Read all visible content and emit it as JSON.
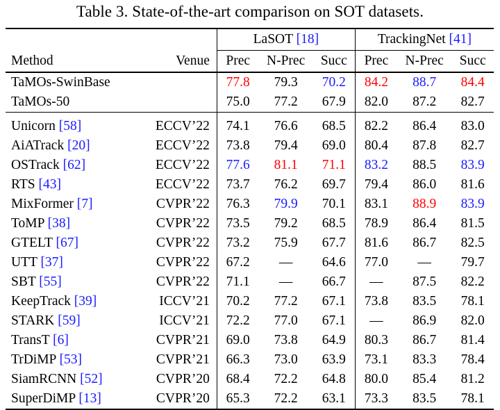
{
  "caption": "Table 3. State-of-the-art comparison on SOT datasets.",
  "groups": [
    {
      "name": "LaSOT",
      "ref": "[18]"
    },
    {
      "name": "TrackingNet",
      "ref": "[41]"
    }
  ],
  "headers": {
    "method": "Method",
    "venue": "Venue",
    "metrics": [
      "Prec",
      "N-Prec",
      "Succ",
      "Prec",
      "N-Prec",
      "Succ"
    ]
  },
  "colors": {
    "best": "#ff0000",
    "second": "#1a1aff",
    "cite": "#1a1aff"
  },
  "ours": [
    {
      "name": "TaMOs-SwinBase",
      "values": [
        "77.8",
        "79.3",
        "70.2",
        "84.2",
        "88.7",
        "84.4"
      ],
      "hl": [
        "red",
        "",
        "blue",
        "red",
        "blue",
        "red"
      ]
    },
    {
      "name": "TaMOs-50",
      "values": [
        "75.0",
        "77.2",
        "67.9",
        "82.0",
        "87.2",
        "82.7"
      ],
      "hl": [
        "",
        "",
        "",
        "",
        "",
        ""
      ]
    }
  ],
  "rows": [
    {
      "name": "Unicorn",
      "ref": "[58]",
      "venue": "ECCV’22",
      "values": [
        "74.1",
        "76.6",
        "68.5",
        "82.2",
        "86.4",
        "83.0"
      ],
      "hl": [
        "",
        "",
        "",
        "",
        "",
        ""
      ]
    },
    {
      "name": "AiATrack",
      "ref": "[20]",
      "venue": "ECCV’22",
      "values": [
        "73.8",
        "79.4",
        "69.0",
        "80.4",
        "87.8",
        "82.7"
      ],
      "hl": [
        "",
        "",
        "",
        "",
        "",
        ""
      ]
    },
    {
      "name": "OSTrack",
      "ref": "[62]",
      "venue": "ECCV’22",
      "values": [
        "77.6",
        "81.1",
        "71.1",
        "83.2",
        "88.5",
        "83.9"
      ],
      "hl": [
        "blue",
        "red",
        "red",
        "blue",
        "",
        "blue"
      ]
    },
    {
      "name": "RTS",
      "ref": "[43]",
      "venue": "ECCV’22",
      "values": [
        "73.7",
        "76.2",
        "69.7",
        "79.4",
        "86.0",
        "81.6"
      ],
      "hl": [
        "",
        "",
        "",
        "",
        "",
        ""
      ]
    },
    {
      "name": "MixFormer",
      "ref": "[7]",
      "venue": "CVPR’22",
      "values": [
        "76.3",
        "79.9",
        "70.1",
        "83.1",
        "88.9",
        "83.9"
      ],
      "hl": [
        "",
        "blue",
        "",
        "",
        "red",
        "blue"
      ]
    },
    {
      "name": "ToMP",
      "ref": "[38]",
      "venue": "CVPR’22",
      "values": [
        "73.5",
        "79.2",
        "68.5",
        "78.9",
        "86.4",
        "81.5"
      ],
      "hl": [
        "",
        "",
        "",
        "",
        "",
        ""
      ]
    },
    {
      "name": "GTELT",
      "ref": "[67]",
      "venue": "CVPR’22",
      "values": [
        "73.2",
        "75.9",
        "67.7",
        "81.6",
        "86.7",
        "82.5"
      ],
      "hl": [
        "",
        "",
        "",
        "",
        "",
        ""
      ]
    },
    {
      "name": "UTT",
      "ref": "[37]",
      "venue": "CVPR’22",
      "values": [
        "67.2",
        "—",
        "64.6",
        "77.0",
        "—",
        "79.7"
      ],
      "hl": [
        "",
        "",
        "",
        "",
        "",
        ""
      ]
    },
    {
      "name": "SBT",
      "ref": "[55]",
      "venue": "CVPR’22",
      "values": [
        "71.1",
        "—",
        "66.7",
        "—",
        "87.5",
        "82.2"
      ],
      "hl": [
        "",
        "",
        "",
        "",
        "",
        ""
      ]
    },
    {
      "name": "KeepTrack",
      "ref": "[39]",
      "venue": "ICCV’21",
      "values": [
        "70.2",
        "77.2",
        "67.1",
        "73.8",
        "83.5",
        "78.1"
      ],
      "hl": [
        "",
        "",
        "",
        "",
        "",
        ""
      ]
    },
    {
      "name": "STARK",
      "ref": "[59]",
      "venue": "ICCV’21",
      "values": [
        "72.2",
        "77.0",
        "67.1",
        "—",
        "86.9",
        "82.0"
      ],
      "hl": [
        "",
        "",
        "",
        "",
        "",
        ""
      ]
    },
    {
      "name": "TransT",
      "ref": "[6]",
      "venue": "CVPR’21",
      "values": [
        "69.0",
        "73.8",
        "64.9",
        "80.3",
        "86.7",
        "81.4"
      ],
      "hl": [
        "",
        "",
        "",
        "",
        "",
        ""
      ]
    },
    {
      "name": "TrDiMP",
      "ref": "[53]",
      "venue": "CVPR’21",
      "values": [
        "66.3",
        "73.0",
        "63.9",
        "73.1",
        "83.3",
        "78.4"
      ],
      "hl": [
        "",
        "",
        "",
        "",
        "",
        ""
      ]
    },
    {
      "name": "SiamRCNN",
      "ref": "[52]",
      "venue": "CVPR’20",
      "values": [
        "68.4",
        "72.2",
        "64.8",
        "80.0",
        "85.4",
        "81.2"
      ],
      "hl": [
        "",
        "",
        "",
        "",
        "",
        ""
      ]
    },
    {
      "name": "SuperDiMP",
      "ref": "[13]",
      "venue": "CVPR’20",
      "values": [
        "65.3",
        "72.2",
        "63.1",
        "73.3",
        "83.5",
        "78.1"
      ],
      "hl": [
        "",
        "",
        "",
        "",
        "",
        ""
      ]
    }
  ]
}
